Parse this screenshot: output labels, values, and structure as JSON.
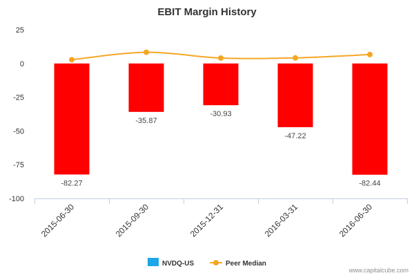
{
  "chart_data": {
    "type": "bar",
    "title": "EBIT Margin History",
    "categories": [
      "2015-06-30",
      "2015-09-30",
      "2015-12-31",
      "2016-03-31",
      "2016-06-30"
    ],
    "series": [
      {
        "name": "NVDQ-US",
        "kind": "bar",
        "values": [
          -82.27,
          -35.87,
          -30.93,
          -47.22,
          -82.44
        ],
        "data_labels": [
          "-82.27",
          "-35.87",
          "-30.93",
          "-47.22",
          "-82.44"
        ],
        "legend_color": "#1aa6e8",
        "bar_color": "#ff0000"
      },
      {
        "name": "Peer Median",
        "kind": "line",
        "values": [
          2.8,
          8.3,
          4.0,
          4.1,
          6.6
        ],
        "color": "#f5a623"
      }
    ],
    "ylim": [
      -100,
      25
    ],
    "yticks": [
      25,
      0,
      -25,
      -50,
      -75,
      -100
    ],
    "ytick_labels": [
      "25",
      "0",
      "-25",
      "-50",
      "-75",
      "-100"
    ],
    "grid": false,
    "legend_position": "bottom-center",
    "xlabel": "",
    "ylabel": ""
  },
  "credit": "www.capitalcube.com"
}
